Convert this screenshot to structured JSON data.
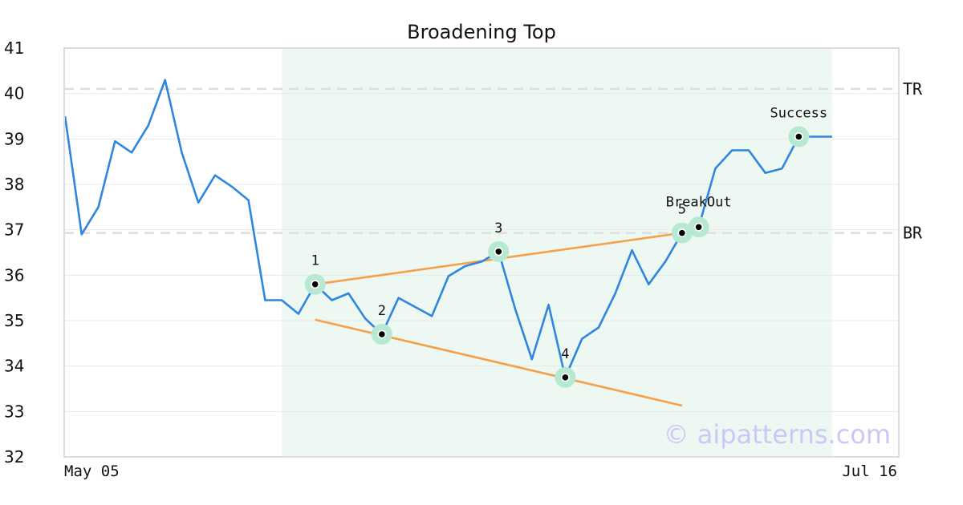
{
  "chart_data": {
    "type": "line",
    "title": "Broadening Top",
    "ylim": [
      32,
      41
    ],
    "y_ticks": [
      "32",
      "33",
      "34",
      "35",
      "36",
      "37",
      "38",
      "39",
      "40",
      "41"
    ],
    "x_tick_labels": [
      "May 05",
      "Jul 16"
    ],
    "grid": "horizontal",
    "series": [
      {
        "values": [
          39.5,
          36.9,
          37.5,
          38.95,
          38.7,
          39.3,
          40.3,
          38.7,
          37.6,
          38.2,
          37.95,
          37.65,
          35.45,
          35.45,
          35.15,
          35.8,
          35.45,
          35.6,
          35.05,
          34.7,
          35.5,
          35.3,
          35.1,
          35.98,
          36.2,
          36.3,
          36.52,
          35.25,
          34.15,
          35.35,
          33.75,
          34.6,
          34.85,
          35.6,
          36.55,
          35.8,
          36.3,
          36.93,
          37.06,
          38.35,
          38.75,
          38.75,
          38.25,
          38.35,
          39.05,
          39.05,
          39.05
        ]
      }
    ],
    "levels": [
      {
        "label": "TR",
        "value": 40.1
      },
      {
        "label": "BR",
        "value": 36.93
      }
    ],
    "highlight_range": {
      "start_index": 13,
      "end_index": 46
    },
    "pattern_points": [
      {
        "label": "1",
        "index": 15,
        "value": 35.8
      },
      {
        "label": "2",
        "index": 19,
        "value": 34.7
      },
      {
        "label": "3",
        "index": 26,
        "value": 36.52
      },
      {
        "label": "4",
        "index": 30,
        "value": 33.75
      },
      {
        "label": "5",
        "index": 37,
        "value": 36.93
      }
    ],
    "breakout_point": {
      "label": "BreakOut",
      "index": 38,
      "value": 37.06
    },
    "success_point": {
      "label": "Success",
      "index": 44,
      "value": 39.05
    },
    "trendlines": [
      {
        "from_index": 15,
        "from_value": 35.8,
        "to_index": 37,
        "to_value": 36.93
      },
      {
        "from_index": 15,
        "from_value": 35.02,
        "to_index": 37,
        "to_value": 33.13
      }
    ],
    "colors": {
      "line": "#2e86de",
      "trendline": "#f5a04a",
      "marker_halo": "#b7e8d2",
      "highlight": "#eef8f3",
      "level": "#dddddd",
      "grid": "#e8e8e8",
      "frame": "#dddddd"
    },
    "watermark": "© aipatterns.com"
  }
}
